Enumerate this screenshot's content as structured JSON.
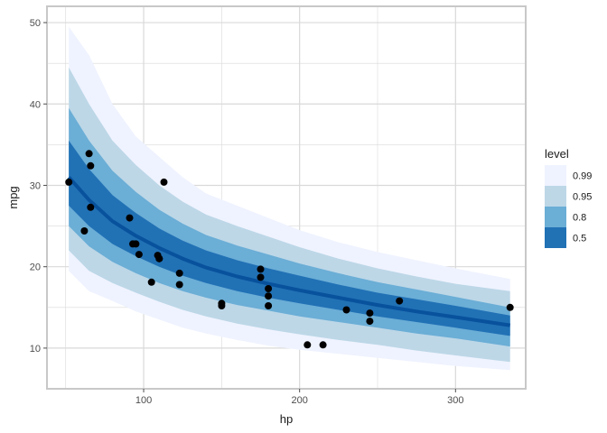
{
  "chart_data": {
    "type": "area",
    "xlabel": "hp",
    "ylabel": "mpg",
    "xlim": [
      38,
      345
    ],
    "ylim": [
      5,
      52
    ],
    "x_ticks": [
      100,
      200,
      300
    ],
    "y_ticks": [
      10,
      20,
      30,
      40,
      50
    ],
    "grid": true,
    "legend": {
      "title": "level",
      "placement": "right",
      "entries": [
        {
          "label": "0.99",
          "color": "#eff3ff"
        },
        {
          "label": "0.95",
          "color": "#bdd7e7"
        },
        {
          "label": "0.8",
          "color": "#6baed6"
        },
        {
          "label": "0.5",
          "color": "#2171b5"
        }
      ]
    },
    "line_color": "#08519c",
    "point_color": "#000000",
    "bands": [
      {
        "level": "0.99",
        "color": "#eff3ff",
        "x": [
          52,
          65,
          80,
          95,
          110,
          125,
          140,
          160,
          180,
          200,
          225,
          250,
          275,
          300,
          335
        ],
        "lower": [
          19.5,
          17,
          15.8,
          14.5,
          13.5,
          12.5,
          11.8,
          11,
          10.3,
          9.8,
          9.3,
          8.8,
          8.3,
          7.8,
          7.3
        ],
        "upper": [
          49.5,
          46,
          40,
          36,
          33.5,
          31,
          29,
          27.5,
          26,
          24.5,
          23,
          21.8,
          20.8,
          19.8,
          18.5
        ]
      },
      {
        "level": "0.95",
        "color": "#bdd7e7",
        "x": [
          52,
          65,
          80,
          95,
          110,
          125,
          140,
          160,
          180,
          200,
          225,
          250,
          275,
          300,
          335
        ],
        "lower": [
          22,
          19.5,
          18,
          16.8,
          15.7,
          14.7,
          13.9,
          13,
          12.3,
          11.7,
          11,
          10.4,
          9.7,
          9.1,
          8.3
        ],
        "upper": [
          44.5,
          40,
          35.5,
          32.5,
          30,
          28,
          26.4,
          25,
          23.7,
          22.4,
          21,
          19.8,
          18.8,
          17.9,
          17
        ]
      },
      {
        "level": "0.8",
        "color": "#6baed6",
        "x": [
          52,
          65,
          80,
          95,
          110,
          125,
          140,
          160,
          180,
          200,
          225,
          250,
          275,
          300,
          335
        ],
        "lower": [
          25,
          22.5,
          20.6,
          19.2,
          18,
          17,
          16.2,
          15.3,
          14.6,
          13.9,
          13.2,
          12.5,
          11.8,
          11.2,
          10.2
        ],
        "upper": [
          39.5,
          35.5,
          31.8,
          29.2,
          27,
          25.3,
          23.9,
          22.6,
          21.5,
          20.4,
          19.2,
          18.1,
          17.2,
          16.3,
          15
        ]
      },
      {
        "level": "0.5",
        "color": "#2171b5",
        "x": [
          52,
          65,
          80,
          95,
          110,
          125,
          140,
          160,
          180,
          200,
          225,
          250,
          275,
          300,
          335
        ],
        "lower": [
          27.5,
          25,
          22.8,
          21.3,
          20,
          18.9,
          18,
          17,
          16.2,
          15.5,
          14.7,
          13.9,
          13.2,
          12.5,
          11.5
        ],
        "upper": [
          35.5,
          32,
          28.8,
          26.6,
          24.7,
          23.2,
          22,
          20.8,
          19.8,
          18.9,
          17.8,
          16.8,
          16,
          15.2,
          14
        ]
      }
    ],
    "fit_line": {
      "x": [
        52,
        65,
        80,
        95,
        110,
        125,
        140,
        160,
        180,
        200,
        225,
        250,
        275,
        300,
        335
      ],
      "y": [
        31,
        28.2,
        25.6,
        23.8,
        22.3,
        21,
        19.9,
        18.8,
        17.9,
        17.1,
        16.2,
        15.3,
        14.5,
        13.8,
        12.8
      ]
    },
    "points": [
      {
        "x": 52,
        "y": 30.4
      },
      {
        "x": 62,
        "y": 24.4
      },
      {
        "x": 65,
        "y": 33.9
      },
      {
        "x": 66,
        "y": 32.4
      },
      {
        "x": 66,
        "y": 27.3
      },
      {
        "x": 91,
        "y": 26.0
      },
      {
        "x": 93,
        "y": 22.8
      },
      {
        "x": 95,
        "y": 22.8
      },
      {
        "x": 97,
        "y": 21.5
      },
      {
        "x": 105,
        "y": 18.1
      },
      {
        "x": 109,
        "y": 21.4
      },
      {
        "x": 110,
        "y": 21.0
      },
      {
        "x": 110,
        "y": 21.0
      },
      {
        "x": 113,
        "y": 30.4
      },
      {
        "x": 123,
        "y": 19.2
      },
      {
        "x": 123,
        "y": 17.8
      },
      {
        "x": 150,
        "y": 15.5
      },
      {
        "x": 150,
        "y": 15.2
      },
      {
        "x": 175,
        "y": 19.7
      },
      {
        "x": 175,
        "y": 18.7
      },
      {
        "x": 180,
        "y": 17.3
      },
      {
        "x": 180,
        "y": 16.4
      },
      {
        "x": 180,
        "y": 15.2
      },
      {
        "x": 205,
        "y": 10.4
      },
      {
        "x": 215,
        "y": 10.4
      },
      {
        "x": 230,
        "y": 14.7
      },
      {
        "x": 245,
        "y": 14.3
      },
      {
        "x": 245,
        "y": 13.3
      },
      {
        "x": 264,
        "y": 15.8
      },
      {
        "x": 335,
        "y": 15.0
      }
    ]
  }
}
